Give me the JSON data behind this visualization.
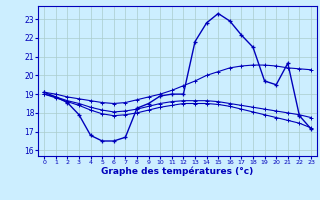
{
  "xlabel": "Graphe des températures (°c)",
  "xlim": [
    -0.5,
    23.5
  ],
  "ylim": [
    15.7,
    23.7
  ],
  "yticks": [
    16,
    17,
    18,
    19,
    20,
    21,
    22,
    23
  ],
  "xticks": [
    0,
    1,
    2,
    3,
    4,
    5,
    6,
    7,
    8,
    9,
    10,
    11,
    12,
    13,
    14,
    15,
    16,
    17,
    18,
    19,
    20,
    21,
    22,
    23
  ],
  "bg_color": "#cceeff",
  "grid_color": "#aacccc",
  "line_color": "#0000bb",
  "line1_y": [
    19.1,
    18.85,
    18.55,
    17.9,
    16.8,
    16.5,
    16.5,
    16.7,
    18.25,
    18.5,
    18.9,
    19.0,
    19.0,
    21.8,
    22.8,
    23.3,
    22.9,
    22.15,
    21.5,
    19.7,
    19.5,
    20.65,
    17.85,
    17.15
  ],
  "line2_y": [
    19.1,
    19.0,
    18.85,
    18.75,
    18.65,
    18.55,
    18.5,
    18.55,
    18.7,
    18.85,
    19.0,
    19.2,
    19.45,
    19.7,
    20.0,
    20.2,
    20.4,
    20.5,
    20.55,
    20.55,
    20.5,
    20.4,
    20.35,
    20.3
  ],
  "line3_y": [
    19.0,
    18.85,
    18.65,
    18.5,
    18.3,
    18.15,
    18.05,
    18.1,
    18.2,
    18.35,
    18.5,
    18.6,
    18.65,
    18.65,
    18.65,
    18.6,
    18.5,
    18.4,
    18.3,
    18.2,
    18.1,
    18.0,
    17.9,
    17.75
  ],
  "line4_y": [
    19.0,
    18.8,
    18.6,
    18.4,
    18.15,
    17.95,
    17.85,
    17.9,
    18.0,
    18.15,
    18.3,
    18.4,
    18.5,
    18.5,
    18.5,
    18.45,
    18.35,
    18.2,
    18.05,
    17.9,
    17.75,
    17.6,
    17.45,
    17.2
  ]
}
